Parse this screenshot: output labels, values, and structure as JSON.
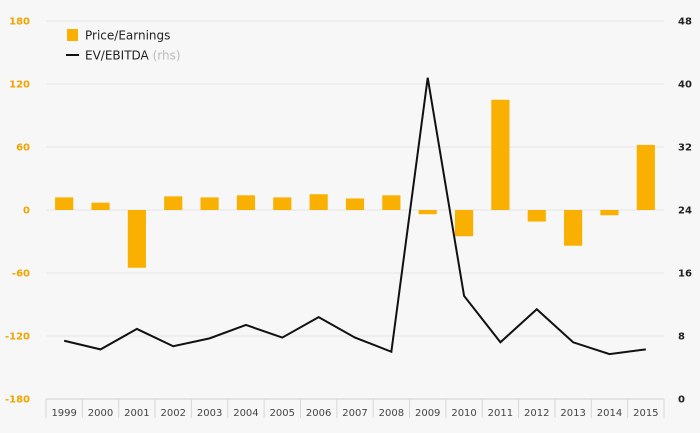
{
  "chart_data": {
    "type": "bar+line",
    "categories": [
      "1999",
      "2000",
      "2001",
      "2002",
      "2003",
      "2004",
      "2005",
      "2006",
      "2007",
      "2008",
      "2009",
      "2010",
      "2011",
      "2012",
      "2013",
      "2014",
      "2015"
    ],
    "series": [
      {
        "name": "Price/Earnings",
        "type": "bar",
        "axis": "left",
        "color": "#f9b000",
        "values": [
          12,
          7,
          -55,
          13,
          12,
          14,
          12,
          15,
          11,
          14,
          -4,
          -25,
          105,
          -11,
          -34,
          -5,
          62
        ]
      },
      {
        "name": "EV/EBITDA",
        "type": "line",
        "axis": "right",
        "color": "#111111",
        "values": [
          7.4,
          6.3,
          8.9,
          6.7,
          7.7,
          9.4,
          7.8,
          10.4,
          7.8,
          6.0,
          40.8,
          13.1,
          7.2,
          11.4,
          7.2,
          5.7,
          6.3
        ]
      }
    ],
    "ylim_left": [
      -180,
      180
    ],
    "yticks_left": [
      -180,
      -120,
      -60,
      0,
      60,
      120,
      180
    ],
    "ylim_right": [
      0,
      48
    ],
    "yticks_right": [
      0,
      8,
      16,
      24,
      32,
      40,
      48
    ],
    "grid": true,
    "legend": {
      "position": "top-left",
      "items": [
        {
          "label": "Price/Earnings",
          "note": "",
          "symbol": "square",
          "color": "#f9b000"
        },
        {
          "label": "EV/EBITDA",
          "note": "(rhs)",
          "symbol": "line",
          "color": "#111111"
        }
      ]
    },
    "title": "",
    "xlabel": "",
    "ylabel": ""
  }
}
